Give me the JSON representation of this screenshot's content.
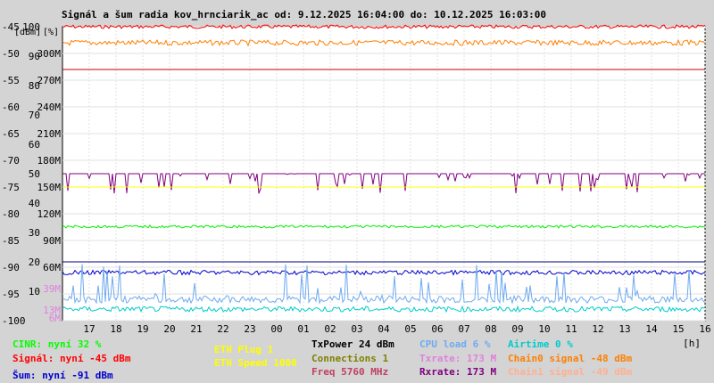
{
  "title": "Signál a šum radia kov_hrnciarik_ac od: 9.12.2025 16:04:00 do: 10.12.2025 16:03:00",
  "chart_data": {
    "type": "line",
    "x_ticks": [
      "17",
      "18",
      "19",
      "20",
      "21",
      "22",
      "23",
      "00",
      "01",
      "02",
      "03",
      "04",
      "05",
      "06",
      "07",
      "08",
      "09",
      "10",
      "11",
      "12",
      "13",
      "14",
      "15",
      "16"
    ],
    "x_unit": "[h]",
    "y_axis_dbm": [
      "-45",
      "-50",
      "-55",
      "-60",
      "-65",
      "-70",
      "-75",
      "-80",
      "-85",
      "-90",
      "-95",
      "-100"
    ],
    "y_axis_percent": [
      "100",
      "90",
      "80",
      "70",
      "60",
      "50",
      "40",
      "30",
      "20",
      "10",
      "0"
    ],
    "y_axis_rate": [
      "300M",
      "270M",
      "240M",
      "210M",
      "180M",
      "150M",
      "120M",
      "90M",
      "60M"
    ],
    "y_axis_rate_low": [
      "39M",
      "13M",
      "6M"
    ],
    "y_axis_header_dbm": "[dBm]",
    "y_axis_header_percent": "[%]",
    "ylim_dbm": [
      -100,
      -45
    ],
    "series": [
      {
        "name": "Signál",
        "color": "#ff0000",
        "level_dbm": -45
      },
      {
        "name": "Chain0 signal",
        "color": "#ff7f00",
        "level_dbm": -48
      },
      {
        "name": "Šum",
        "color": "#0000cc",
        "level_dbm": -91
      },
      {
        "name": "CINR",
        "color": "#00cc00",
        "level_percent": 32
      },
      {
        "name": "Airtime",
        "color": "#00cccc",
        "level_percent": 0
      },
      {
        "name": "CPU load",
        "color": "#6eaaf0",
        "level_percent": 6
      },
      {
        "name": "Txrate",
        "color": "#e080e0",
        "value": "173 M"
      },
      {
        "name": "Rxrate",
        "color": "#800080",
        "value": "173 M"
      }
    ]
  },
  "legend": {
    "cinr": "CINR: nyní 32 %",
    "signal": "Signál: nyní -45 dBm",
    "noise": "Šum: nyní -91 dBm",
    "eth_plug": "ETH Plug 1",
    "eth_speed": "ETH Speed 1000",
    "txpower": "TxPower 24 dBm",
    "connections": "Connections 1",
    "freq": "Freq 5760 MHz",
    "cpu": "CPU load 6 %",
    "txrate": "Txrate: 173 M",
    "rxrate": "Rxrate: 173 M",
    "airtime": "Airtime 0 %",
    "chain0": "Chain0 signal -48 dBm",
    "chain1": "Chain1 signal -49 dBm"
  },
  "colors": {
    "cinr": "#00ff00",
    "signal": "#ff0000",
    "noise": "#0000cc",
    "eth": "#ffff00",
    "txpower": "#000000",
    "connections": "#808000",
    "freq": "#c04060",
    "cpu": "#6eaaf0",
    "txrate": "#e080e0",
    "rxrate": "#800080",
    "airtime": "#00cccc",
    "chain0": "#ff7f00",
    "chain1": "#ffb090"
  }
}
